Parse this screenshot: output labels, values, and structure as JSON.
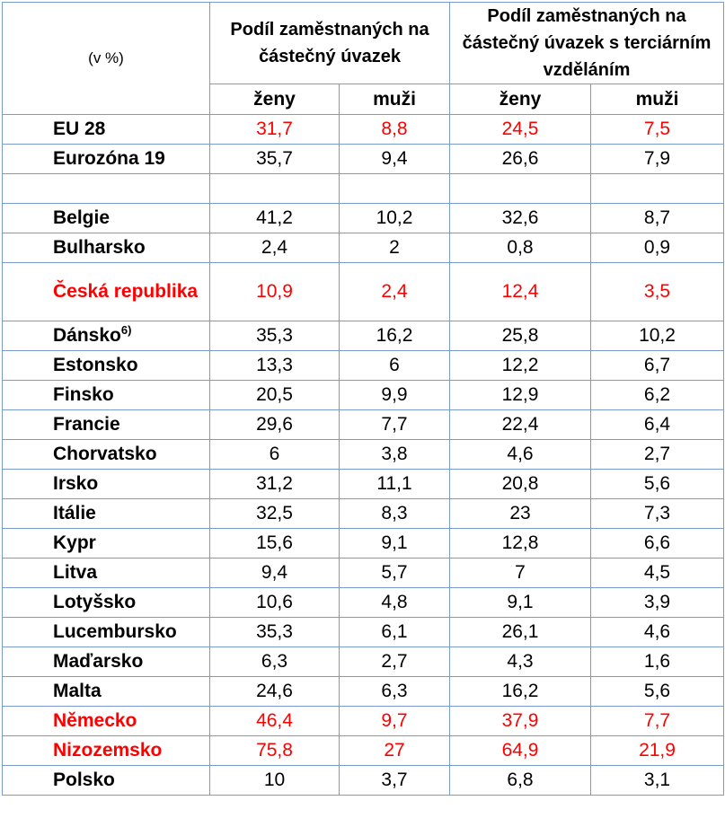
{
  "table": {
    "unit_label": "(v %)",
    "group1": "Podíl zaměstnaných na částečný úvazek",
    "group2": "Podíl zaměstnaných na částečný úvazek s terciárním vzděláním",
    "sub_women": "ženy",
    "sub_men": "muži",
    "highlight_color": "#ff0000",
    "border_color": "#7a9bcc",
    "rows": [
      {
        "name": "EU 28",
        "w1": "31,7",
        "m1": "8,8",
        "w2": "24,5",
        "m2": "7,5",
        "name_red": false,
        "values_red": true
      },
      {
        "name": "Eurozóna 19",
        "w1": "35,7",
        "m1": "9,4",
        "w2": "26,6",
        "m2": "7,9",
        "name_red": false,
        "values_red": false
      },
      {
        "name": "",
        "w1": "",
        "m1": "",
        "w2": "",
        "m2": "",
        "name_red": false,
        "values_red": false
      },
      {
        "name": "Belgie",
        "w1": "41,2",
        "m1": "10,2",
        "w2": "32,6",
        "m2": "8,7",
        "name_red": false,
        "values_red": false
      },
      {
        "name": "Bulharsko",
        "w1": "2,4",
        "m1": "2",
        "w2": "0,8",
        "m2": "0,9",
        "name_red": false,
        "values_red": false
      },
      {
        "name": "Česká republika",
        "w1": "10,9",
        "m1": "2,4",
        "w2": "12,4",
        "m2": "3,5",
        "name_red": true,
        "values_red": true,
        "tall": true
      },
      {
        "name": "Dánsko",
        "footnote": "6)",
        "w1": "35,3",
        "m1": "16,2",
        "w2": "25,8",
        "m2": "10,2",
        "name_red": false,
        "values_red": false
      },
      {
        "name": "Estonsko",
        "w1": "13,3",
        "m1": "6",
        "w2": "12,2",
        "m2": "6,7",
        "name_red": false,
        "values_red": false
      },
      {
        "name": "Finsko",
        "w1": "20,5",
        "m1": "9,9",
        "w2": "12,9",
        "m2": "6,2",
        "name_red": false,
        "values_red": false
      },
      {
        "name": "Francie",
        "w1": "29,6",
        "m1": "7,7",
        "w2": "22,4",
        "m2": "6,4",
        "name_red": false,
        "values_red": false
      },
      {
        "name": "Chorvatsko",
        "w1": "6",
        "m1": "3,8",
        "w2": "4,6",
        "m2": "2,7",
        "name_red": false,
        "values_red": false
      },
      {
        "name": "Irsko",
        "w1": "31,2",
        "m1": "11,1",
        "w2": "20,8",
        "m2": "5,6",
        "name_red": false,
        "values_red": false
      },
      {
        "name": "Itálie",
        "w1": "32,5",
        "m1": "8,3",
        "w2": "23",
        "m2": "7,3",
        "name_red": false,
        "values_red": false
      },
      {
        "name": "Kypr",
        "w1": "15,6",
        "m1": "9,1",
        "w2": "12,8",
        "m2": "6,6",
        "name_red": false,
        "values_red": false
      },
      {
        "name": "Litva",
        "w1": "9,4",
        "m1": "5,7",
        "w2": "7",
        "m2": "4,5",
        "name_red": false,
        "values_red": false
      },
      {
        "name": "Lotyšsko",
        "w1": "10,6",
        "m1": "4,8",
        "w2": "9,1",
        "m2": "3,9",
        "name_red": false,
        "values_red": false
      },
      {
        "name": "Lucembursko",
        "w1": "35,3",
        "m1": "6,1",
        "w2": "26,1",
        "m2": "4,6",
        "name_red": false,
        "values_red": false
      },
      {
        "name": "Maďarsko",
        "w1": "6,3",
        "m1": "2,7",
        "w2": "4,3",
        "m2": "1,6",
        "name_red": false,
        "values_red": false
      },
      {
        "name": "Malta",
        "w1": "24,6",
        "m1": "6,3",
        "w2": "16,2",
        "m2": "5,6",
        "name_red": false,
        "values_red": false
      },
      {
        "name": "Německo",
        "w1": "46,4",
        "m1": "9,7",
        "w2": "37,9",
        "m2": "7,7",
        "name_red": true,
        "values_red": true
      },
      {
        "name": "Nizozemsko",
        "w1": "75,8",
        "m1": "27",
        "w2": "64,9",
        "m2": "21,9",
        "name_red": true,
        "values_red": true
      },
      {
        "name": "Polsko",
        "w1": "10",
        "m1": "3,7",
        "w2": "6,8",
        "m2": "3,1",
        "name_red": false,
        "values_red": false
      }
    ]
  }
}
